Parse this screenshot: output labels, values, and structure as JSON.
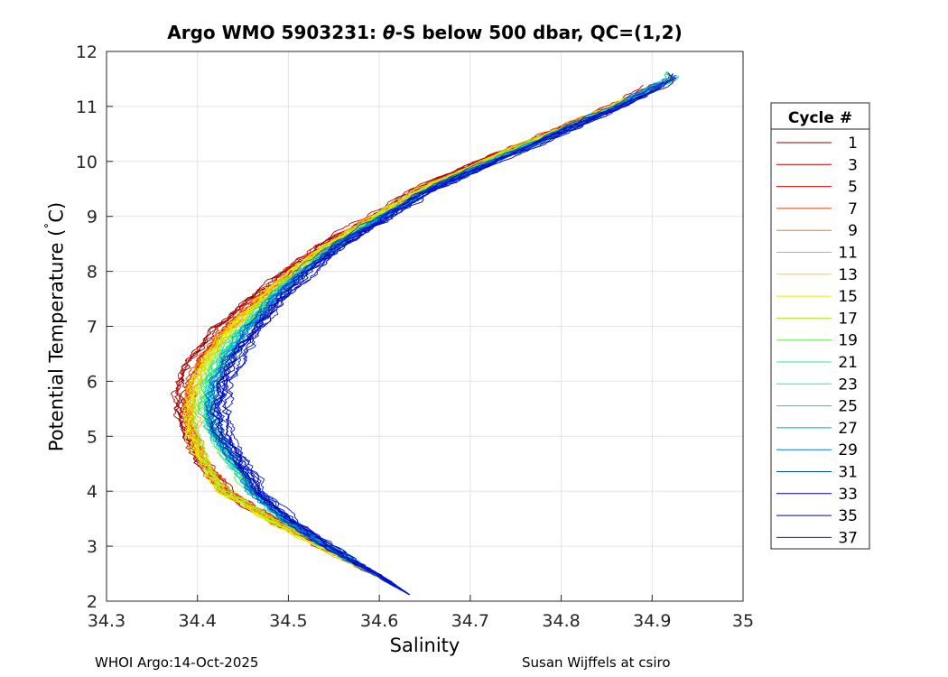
{
  "chart_data": {
    "type": "line",
    "title_parts": [
      "Argo WMO 5903231: ",
      "θ",
      "-S below 500 dbar,  QC=(1,2)"
    ],
    "xlabel": "Salinity",
    "ylabel_parts": [
      "Potential Temperature (",
      "˚",
      "C)"
    ],
    "xlim": [
      34.3,
      35
    ],
    "ylim": [
      2,
      12
    ],
    "xticks": [
      "34.3",
      "34.4",
      "34.5",
      "34.6",
      "34.7",
      "34.8",
      "34.9",
      "35"
    ],
    "yticks": [
      "2",
      "3",
      "4",
      "5",
      "6",
      "7",
      "8",
      "9",
      "10",
      "11",
      "12"
    ],
    "grid": true,
    "legend_title": "Cycle #",
    "legend_placement": "outside-right",
    "series": [
      {
        "name": "1",
        "color": "#800000"
      },
      {
        "name": "3",
        "color": "#c00000"
      },
      {
        "name": "5",
        "color": "#e00000"
      },
      {
        "name": "7",
        "color": "#e64000"
      },
      {
        "name": "9",
        "color": "#ec8000"
      },
      {
        "name": "11",
        "color": "#f0b000"
      },
      {
        "name": "13",
        "color": "#f0dc00"
      },
      {
        "name": "15",
        "color": "#e6f000"
      },
      {
        "name": "17",
        "color": "#a0f020"
      },
      {
        "name": "19",
        "color": "#60f040"
      },
      {
        "name": "21",
        "color": "#30e890"
      },
      {
        "name": "23",
        "color": "#20e0c0"
      },
      {
        "name": "25",
        "color": "#10c8e0"
      },
      {
        "name": "27",
        "color": "#00a8c8"
      },
      {
        "name": "29",
        "color": "#0080c8"
      },
      {
        "name": "31",
        "color": "#0050c0"
      },
      {
        "name": "33",
        "color": "#000090"
      },
      {
        "name": "35",
        "color": "#0000c0"
      },
      {
        "name": "37",
        "color": "#0018e0"
      }
    ],
    "mean_profile": {
      "theta": [
        2.1,
        2.5,
        3.0,
        3.5,
        4.0,
        4.5,
        5.0,
        5.5,
        6.0,
        6.5,
        7.0,
        7.5,
        8.0,
        8.5,
        9.0,
        9.5,
        10.0,
        10.5,
        11.0,
        11.5
      ],
      "salinity": [
        34.635,
        34.595,
        34.54,
        34.485,
        34.44,
        34.42,
        34.405,
        34.4,
        34.405,
        34.42,
        34.445,
        34.475,
        34.51,
        34.55,
        34.6,
        34.65,
        34.72,
        34.79,
        34.86,
        34.92
      ]
    }
  },
  "footer": {
    "left": "WHOI Argo:14-Oct-2025",
    "right": "Susan Wijffels at csiro"
  }
}
